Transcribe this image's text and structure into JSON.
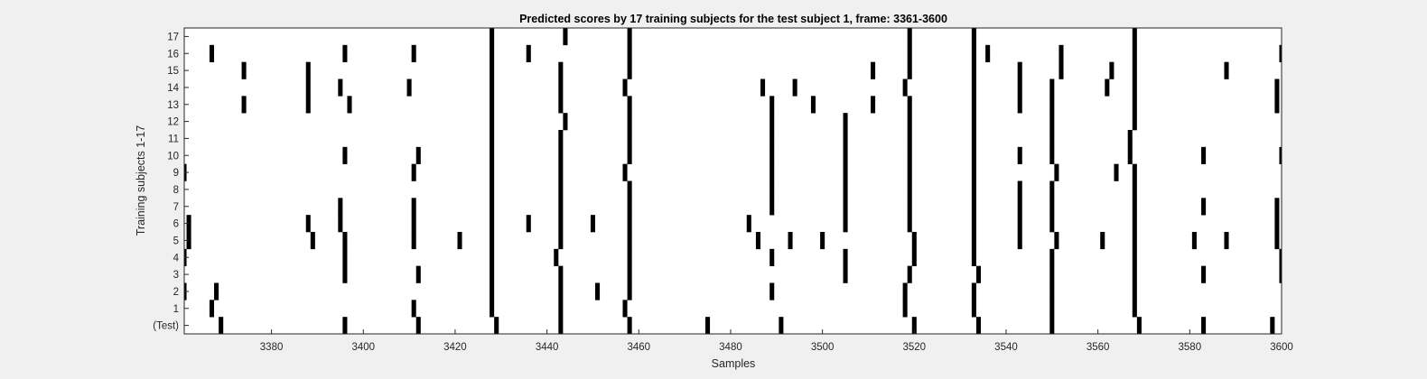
{
  "chart_data": {
    "type": "heatmap",
    "title": "Predicted scores by 17 training subjects for the test subject 1, frame: 3361-3600",
    "xlabel": "Samples",
    "ylabel": "Training subjects 1-17",
    "xlim": [
      3361,
      3600
    ],
    "xticks": [
      3380,
      3400,
      3420,
      3440,
      3460,
      3480,
      3500,
      3520,
      3540,
      3560,
      3580,
      3600
    ],
    "row_labels": [
      "(Test)",
      "1",
      "2",
      "3",
      "4",
      "5",
      "6",
      "7",
      "8",
      "9",
      "10",
      "11",
      "12",
      "13",
      "14",
      "15",
      "16",
      "17"
    ],
    "mark_color": "#000000",
    "background_color": "#ffffff",
    "series": [
      {
        "row": "(Test)",
        "samples": [
          3369,
          3396,
          3412,
          3429,
          3443,
          3458,
          3475,
          3491,
          3520,
          3534,
          3550,
          3569,
          3583,
          3598
        ]
      },
      {
        "row": "1",
        "samples": [
          3367,
          3411,
          3428,
          3443,
          3457,
          3518,
          3533,
          3550,
          3568
        ]
      },
      {
        "row": "2",
        "samples": [
          3361,
          3368,
          3428,
          3443,
          3451,
          3458,
          3489,
          3518,
          3533,
          3550,
          3568
        ]
      },
      {
        "row": "3",
        "samples": [
          3396,
          3412,
          3428,
          3443,
          3458,
          3505,
          3519,
          3534,
          3550,
          3568,
          3583,
          3600
        ]
      },
      {
        "row": "4",
        "samples": [
          3361,
          3396,
          3428,
          3442,
          3458,
          3489,
          3505,
          3520,
          3533,
          3550,
          3568,
          3600
        ]
      },
      {
        "row": "5",
        "samples": [
          3362,
          3389,
          3396,
          3411,
          3421,
          3428,
          3443,
          3458,
          3486,
          3493,
          3500,
          3520,
          3533,
          3543,
          3551,
          3561,
          3568,
          3581,
          3588,
          3599
        ]
      },
      {
        "row": "6",
        "samples": [
          3362,
          3388,
          3395,
          3411,
          3428,
          3436,
          3443,
          3450,
          3458,
          3484,
          3505,
          3519,
          3533,
          3543,
          3550,
          3568,
          3599
        ]
      },
      {
        "row": "7",
        "samples": [
          3395,
          3411,
          3428,
          3443,
          3458,
          3489,
          3505,
          3519,
          3533,
          3543,
          3550,
          3568,
          3583,
          3599
        ]
      },
      {
        "row": "8",
        "samples": [
          3428,
          3443,
          3458,
          3489,
          3505,
          3519,
          3533,
          3543,
          3550,
          3568
        ]
      },
      {
        "row": "9",
        "samples": [
          3361,
          3411,
          3428,
          3443,
          3457,
          3489,
          3505,
          3519,
          3533,
          3551,
          3564,
          3568
        ]
      },
      {
        "row": "10",
        "samples": [
          3396,
          3412,
          3428,
          3443,
          3458,
          3489,
          3505,
          3519,
          3533,
          3543,
          3550,
          3567,
          3583,
          3600
        ]
      },
      {
        "row": "11",
        "samples": [
          3428,
          3443,
          3458,
          3489,
          3505,
          3519,
          3533,
          3550,
          3567
        ]
      },
      {
        "row": "12",
        "samples": [
          3428,
          3444,
          3458,
          3489,
          3505,
          3519,
          3533,
          3550,
          3568
        ]
      },
      {
        "row": "13",
        "samples": [
          3374,
          3388,
          3397,
          3428,
          3443,
          3458,
          3489,
          3498,
          3511,
          3519,
          3533,
          3543,
          3550,
          3568,
          3599
        ]
      },
      {
        "row": "14",
        "samples": [
          3388,
          3395,
          3410,
          3428,
          3443,
          3457,
          3487,
          3494,
          3518,
          3533,
          3543,
          3550,
          3562,
          3568,
          3599
        ]
      },
      {
        "row": "15",
        "samples": [
          3374,
          3388,
          3428,
          3443,
          3458,
          3511,
          3519,
          3533,
          3543,
          3552,
          3563,
          3568,
          3588
        ]
      },
      {
        "row": "16",
        "samples": [
          3367,
          3396,
          3411,
          3428,
          3436,
          3458,
          3519,
          3533,
          3536,
          3552,
          3568,
          3600
        ]
      },
      {
        "row": "17",
        "samples": [
          3428,
          3444,
          3458,
          3519,
          3533,
          3568
        ]
      }
    ]
  }
}
